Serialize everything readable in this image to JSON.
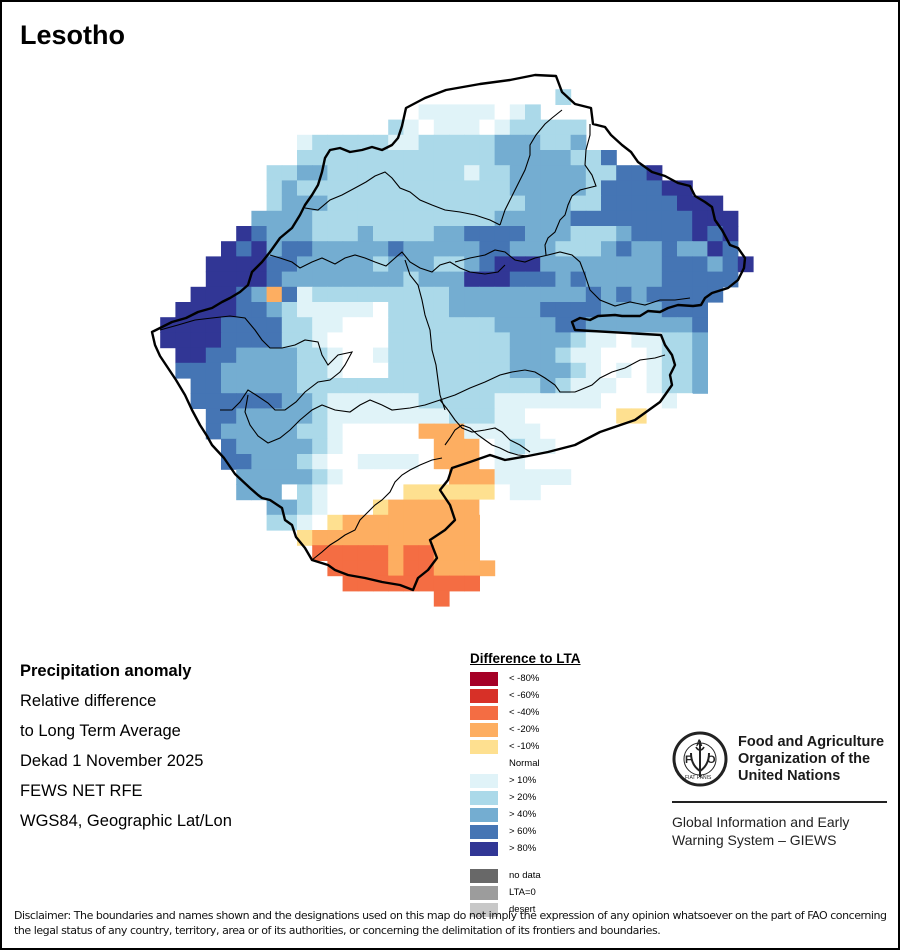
{
  "title": "Lesotho",
  "info": {
    "lines": [
      "Precipitation anomaly",
      "Relative difference",
      "to Long Term Average",
      "Dekad 1 November 2025",
      "FEWS NET RFE",
      "WGS84, Geographic Lat/Lon"
    ]
  },
  "legend": {
    "title": "Difference to LTA",
    "items": [
      {
        "key": "m80",
        "label": "< -80%",
        "color": "#a50026"
      },
      {
        "key": "m60",
        "label": "< -60%",
        "color": "#d73027"
      },
      {
        "key": "m40",
        "label": "< -40%",
        "color": "#f46d43"
      },
      {
        "key": "m20",
        "label": "< -20%",
        "color": "#fdae61"
      },
      {
        "key": "m10",
        "label": "< -10%",
        "color": "#fee090"
      },
      {
        "key": "normal",
        "label": "Normal",
        "color": "#ffffff"
      },
      {
        "key": "p10",
        "label": "> 10%",
        "color": "#e0f3f8"
      },
      {
        "key": "p20",
        "label": "> 20%",
        "color": "#abd9e9"
      },
      {
        "key": "p40",
        "label": "> 40%",
        "color": "#74add1"
      },
      {
        "key": "p60",
        "label": "> 60%",
        "color": "#4575b4"
      },
      {
        "key": "p80",
        "label": "> 80%",
        "color": "#313695"
      }
    ],
    "extra": [
      {
        "key": "nodata",
        "label": "no data",
        "color": "#686868"
      },
      {
        "key": "lta0",
        "label": "LTA=0",
        "color": "#9c9c9c"
      },
      {
        "key": "desert",
        "label": "desert",
        "color": "#c8c8c8"
      }
    ]
  },
  "raster": {
    "legend_key_map": {
      ".": null,
      "0": "normal",
      "y": "m10",
      "o": "m20",
      "r": "m40",
      "a": "p10",
      "b": "p20",
      "c": "p40",
      "d": "p60",
      "e": "p80"
    },
    "rows": [
      "........................................",
      "...........................b............",
      "..................aaaaa0ab..............",
      "................ba0aaa0abbbbb...........",
      "..........abbbbbaabbbbbcccbbc..........",
      "..........bbbbbbbbbbbbbcccccbbd.........",
      "........bbccbbbbbbbbbabbcccccbbdde......",
      "........bcbbbbbbbbbbbbbbcccccbddddee....",
      "........bcccbbbbbbbbbbbbbcccbbdddddeee..",
      ".......ccccbbbbbbbbbbbbcccccddddddddeee.",
      "......edcccbbbcbbbbccddddcccbbbcddddede.",
      ".....edecddcccccdcccccddcccbbbcdccdcced.",
      "....eeeeddcccccbcccbbcdeeeccccccccdddcde",
      "....eeeedccccccccbccceeedddcdcccccddddd.",
      "...eeedcodabbbbbbbbbcccccccccdcdcddddd..",
      "..eeeeddcbaaaaa0bbbbccccccddddccccddd...",
      ".eeeeddddbbaa000bbbbbbbccccddcccccccd...",
      ".eeeeddddbba0000bbbbbbbbccccbaa0aabbc...",
      "..eeddccccbba00abbbbbbbbcccbaa000abbc...",
      "..dddcccccbba000bbbbbbbbccccba0a0abbc...",
      "...ddcccccbbbbbbbbbbbbbbbbcbaaa00abbc...",
      "...ddddddccbaaaaaabbbbbaaaaaaa0000a0....",
      "....ddcccccbaaaaaaaabbbaa000000yy00.....",
      "....dcccccbba00000oooaaaaa00000000......",
      ".....dcccccba000000ooo0abaa00000........",
      ".....ddcccba00aaaa0ooo0aa0000..........",
      "......cccccba0000000oooaaaaa............",
      "......ccc0ba00000yyyyyy0aa.............",
      "........ccba000yoooooo0.................",
      "........bba0yooooooooo..................",
      "..........yooooooooooo..................",
      "...........rrrrrorrooo..................",
      "............rrrrorroooo.................",
      ".............rrrrrrrrr..................",
      "...................r....................."
    ]
  },
  "logo": {
    "letters": [
      "F",
      "A",
      "O"
    ],
    "motto": "FIAT PANIS",
    "org_name_lines": [
      "Food and Agriculture",
      "Organization of the",
      "United Nations"
    ],
    "system_lines": [
      "Global Information and Early",
      "Warning System – GIEWS"
    ]
  },
  "disclaimer": "Disclaimer: The boundaries and names shown and the designations used on this map do not imply the expression of any opinion whatsoever on the part of FAO concerning the legal status of any country, territory, area or of its authorities, or concerning the delimitation of its frontiers and boundaries."
}
